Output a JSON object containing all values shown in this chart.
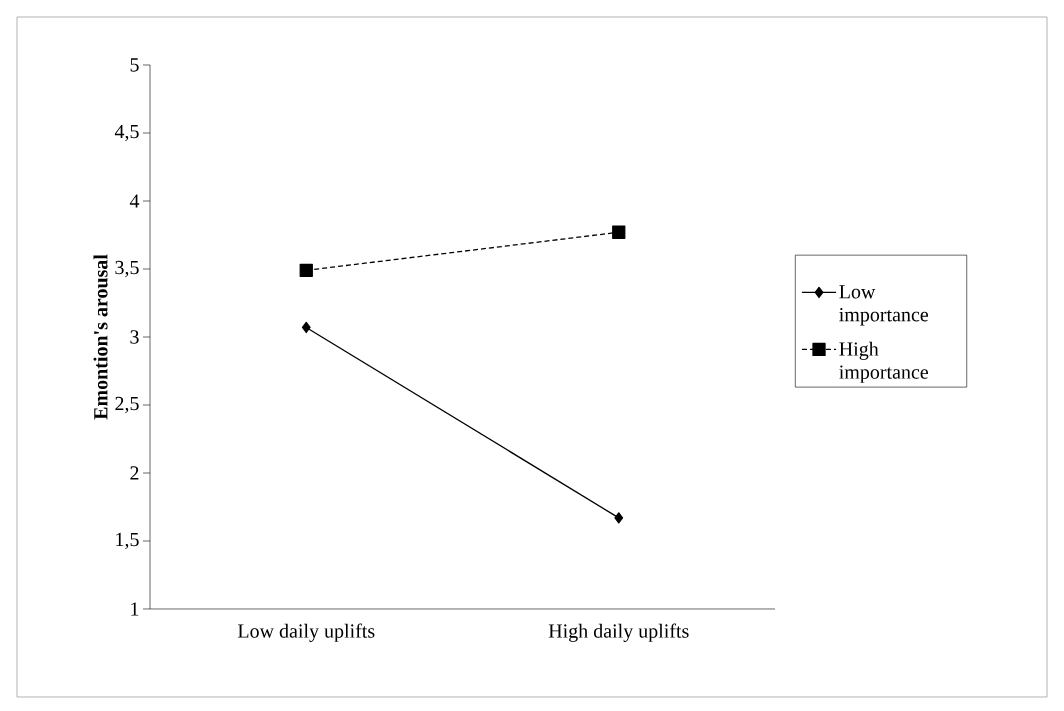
{
  "chart_data": {
    "type": "line",
    "ylabel": "Emontion's arousal",
    "categories": [
      "Low daily uplifts",
      "High daily uplifts"
    ],
    "series": [
      {
        "name": "Low importance",
        "color": "#000000",
        "values": [
          3.07,
          1.67
        ],
        "marker": "diamond",
        "line_style": "solid"
      },
      {
        "name": "High importance",
        "color": "#000000",
        "values": [
          3.49,
          3.77
        ],
        "marker": "square",
        "line_style": "dashed"
      }
    ],
    "ylim": [
      1,
      5
    ],
    "yticks": [
      1,
      {
        "value": 1.5,
        "label": "1,5"
      },
      2,
      {
        "value": 2.5,
        "label": "2,5"
      },
      3,
      {
        "value": 3.5,
        "label": "3,5"
      },
      4,
      {
        "value": 4.5,
        "label": "4,5"
      },
      5
    ],
    "grid": false,
    "legend": "right"
  }
}
